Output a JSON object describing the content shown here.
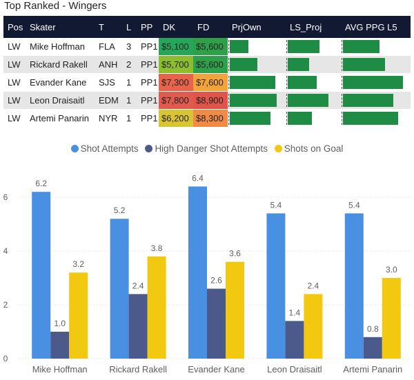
{
  "title": "Top Ranked - Wingers",
  "table": {
    "headers": [
      "Pos",
      "Skater",
      "T",
      "L",
      "PP",
      "DK",
      "FD",
      "PrjOwn",
      "LS_Proj",
      "AVG PPG L5"
    ],
    "rows": [
      {
        "pos": "LW",
        "skater": "Mike Hoffman",
        "team": "FLA",
        "line": "3",
        "pp": "PP1",
        "dk": "$5,100",
        "fd": "$5,600",
        "dk_color": "#26a65b",
        "fd_color": "#2ea04a",
        "prj_own": 0.37,
        "ls_proj": 0.67,
        "avg_ppg": 0.59
      },
      {
        "pos": "LW",
        "skater": "Rickard Rakell",
        "team": "ANH",
        "line": "2",
        "pp": "PP1",
        "dk": "$5,700",
        "fd": "$5,600",
        "dk_color": "#8bbd2e",
        "fd_color": "#2ea04a",
        "prj_own": 0.55,
        "ls_proj": 0.45,
        "avg_ppg": 0.68
      },
      {
        "pos": "LW",
        "skater": "Evander Kane",
        "team": "SJS",
        "line": "1",
        "pp": "PP1",
        "dk": "$7,300",
        "fd": "$7,600",
        "dk_color": "#e8634a",
        "fd_color": "#f2a33a",
        "prj_own": 0.92,
        "ls_proj": 0.62,
        "avg_ppg": 0.98
      },
      {
        "pos": "LW",
        "skater": "Leon Draisaitl",
        "team": "EDM",
        "line": "1",
        "pp": "PP1",
        "dk": "$7,800",
        "fd": "$8,900",
        "dk_color": "#e05a4e",
        "fd_color": "#e0544a",
        "prj_own": 0.95,
        "ls_proj": 0.87,
        "avg_ppg": 0.82
      },
      {
        "pos": "LW",
        "skater": "Artemi Panarin",
        "team": "NYR",
        "line": "1",
        "pp": "PP1",
        "dk": "$6,200",
        "fd": "$8,300",
        "dk_color": "#d8c531",
        "fd_color": "#f08a44",
        "prj_own": 0.82,
        "ls_proj": 0.52,
        "avg_ppg": 0.9
      }
    ]
  },
  "chart_data": {
    "type": "bar",
    "categories": [
      "Mike Hoffman",
      "Rickard Rakell",
      "Evander Kane",
      "Leon Draisaitl",
      "Artemi Panarin"
    ],
    "series": [
      {
        "name": "Shot Attempts",
        "color": "#4a90e2",
        "values": [
          6.2,
          5.2,
          6.4,
          5.4,
          5.4
        ],
        "labels": [
          "6.2",
          "5.2",
          "6.4",
          "5.4",
          "5.4"
        ]
      },
      {
        "name": "High Danger Shot Attempts",
        "color": "#4b5a8a",
        "values": [
          1.0,
          2.4,
          2.6,
          1.4,
          0.8
        ],
        "labels": [
          "1.0",
          "2.4",
          "2.6",
          "1.4",
          "0.8"
        ]
      },
      {
        "name": "Shots on Goal",
        "color": "#f2c811",
        "values": [
          3.2,
          3.8,
          3.6,
          2.4,
          3.0
        ],
        "labels": [
          "3.2",
          "3.8",
          "3.6",
          "2.4",
          "3.0"
        ]
      }
    ],
    "yticks": [
      "0",
      "2",
      "4",
      "6"
    ],
    "ylim": [
      0,
      7
    ],
    "grid": true,
    "legend": "top-center"
  }
}
